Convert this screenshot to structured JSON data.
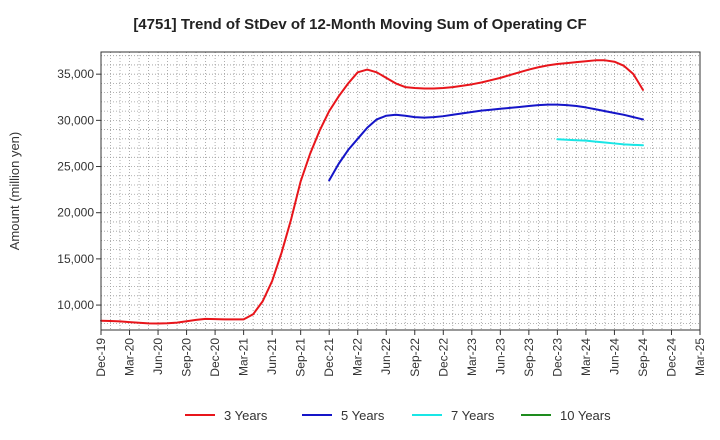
{
  "chart_data": {
    "type": "line",
    "title": "[4751]  Trend of StDev of 12-Month Moving Sum of Operating CF",
    "xlabel": "",
    "ylabel": "Amount (million yen)",
    "x_ticks": [
      "Dec-19",
      "Mar-20",
      "Jun-20",
      "Sep-20",
      "Dec-20",
      "Mar-21",
      "Jun-21",
      "Sep-21",
      "Dec-21",
      "Mar-22",
      "Jun-22",
      "Sep-22",
      "Dec-22",
      "Mar-23",
      "Jun-23",
      "Sep-23",
      "Dec-23",
      "Mar-24",
      "Jun-24",
      "Sep-24",
      "Dec-24",
      "Mar-25"
    ],
    "y_ticks": [
      10000,
      15000,
      20000,
      25000,
      30000,
      35000
    ],
    "y_tick_labels": [
      "10,000",
      "15,000",
      "20,000",
      "25,000",
      "30,000",
      "35,000"
    ],
    "ylim": [
      7300,
      37400
    ],
    "grid": true,
    "legend_position": "bottom",
    "series": [
      {
        "name": "3 Years",
        "color": "#e8151b",
        "x": [
          "Dec-19",
          "Jan-20",
          "Feb-20",
          "Mar-20",
          "Apr-20",
          "May-20",
          "Jun-20",
          "Jul-20",
          "Aug-20",
          "Sep-20",
          "Oct-20",
          "Nov-20",
          "Dec-20",
          "Jan-21",
          "Feb-21",
          "Mar-21",
          "Apr-21",
          "May-21",
          "Jun-21",
          "Jul-21",
          "Aug-21",
          "Sep-21",
          "Oct-21",
          "Nov-21",
          "Dec-21",
          "Jan-22",
          "Feb-22",
          "Mar-22",
          "Apr-22",
          "May-22",
          "Jun-22",
          "Jul-22",
          "Aug-22",
          "Sep-22",
          "Oct-22",
          "Nov-22",
          "Dec-22",
          "Jan-23",
          "Feb-23",
          "Mar-23",
          "Apr-23",
          "May-23",
          "Jun-23",
          "Jul-23",
          "Aug-23",
          "Sep-23",
          "Oct-23",
          "Nov-23",
          "Dec-23",
          "Jan-24",
          "Feb-24",
          "Mar-24",
          "Apr-24",
          "May-24",
          "Jun-24",
          "Jul-24",
          "Aug-24",
          "Sep-24"
        ],
        "values": [
          8300,
          8280,
          8230,
          8150,
          8080,
          8020,
          8000,
          8030,
          8100,
          8250,
          8400,
          8500,
          8480,
          8450,
          8450,
          8450,
          9000,
          10400,
          12600,
          15700,
          19300,
          23400,
          26400,
          28900,
          31000,
          32600,
          34000,
          35200,
          35500,
          35200,
          34600,
          34000,
          33600,
          33500,
          33450,
          33450,
          33500,
          33600,
          33750,
          33900,
          34100,
          34350,
          34600,
          34900,
          35200,
          35500,
          35750,
          35950,
          36100,
          36200,
          36300,
          36400,
          36500,
          36500,
          36350,
          35900,
          35000,
          33300
        ]
      },
      {
        "name": "5 Years",
        "color": "#1515c8",
        "x": [
          "Dec-21",
          "Jan-22",
          "Feb-22",
          "Mar-22",
          "Apr-22",
          "May-22",
          "Jun-22",
          "Jul-22",
          "Aug-22",
          "Sep-22",
          "Oct-22",
          "Nov-22",
          "Dec-22",
          "Jan-23",
          "Feb-23",
          "Mar-23",
          "Apr-23",
          "May-23",
          "Jun-23",
          "Jul-23",
          "Aug-23",
          "Sep-23",
          "Oct-23",
          "Nov-23",
          "Dec-23",
          "Jan-24",
          "Feb-24",
          "Mar-24",
          "Apr-24",
          "May-24",
          "Jun-24",
          "Jul-24",
          "Aug-24",
          "Sep-24"
        ],
        "values": [
          23500,
          25300,
          26800,
          28000,
          29200,
          30100,
          30500,
          30600,
          30500,
          30350,
          30300,
          30350,
          30450,
          30600,
          30750,
          30900,
          31050,
          31150,
          31250,
          31350,
          31450,
          31550,
          31650,
          31700,
          31700,
          31650,
          31550,
          31400,
          31200,
          31000,
          30800,
          30600,
          30350,
          30100
        ]
      },
      {
        "name": "7 Years",
        "color": "#19e6e6",
        "x": [
          "Dec-23",
          "Jan-24",
          "Feb-24",
          "Mar-24",
          "Apr-24",
          "May-24",
          "Jun-24",
          "Jul-24",
          "Aug-24",
          "Sep-24"
        ],
        "values": [
          27950,
          27900,
          27850,
          27800,
          27700,
          27600,
          27500,
          27400,
          27350,
          27300
        ]
      },
      {
        "name": "10 Years",
        "color": "#1e8c1e",
        "x": [],
        "values": []
      }
    ]
  }
}
